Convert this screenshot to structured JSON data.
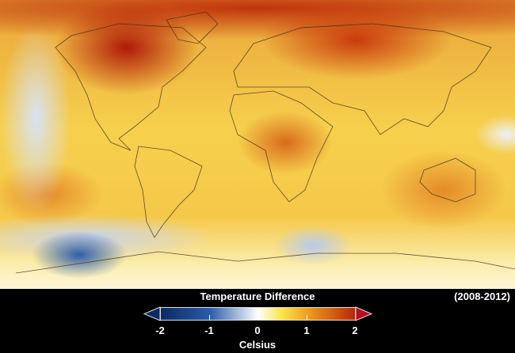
{
  "legend": {
    "title": "Temperature Difference",
    "period": "(2008-2012)",
    "unit": "Celsius",
    "ticks": [
      "-2",
      "-1",
      "0",
      "1",
      "2"
    ],
    "range": [
      -2,
      2
    ],
    "colors": {
      "min": "#0a2a66",
      "neg": "#2a5ba8",
      "zero": "#ffffff",
      "pos1": "#f0a020",
      "max": "#b8280a"
    }
  }
}
